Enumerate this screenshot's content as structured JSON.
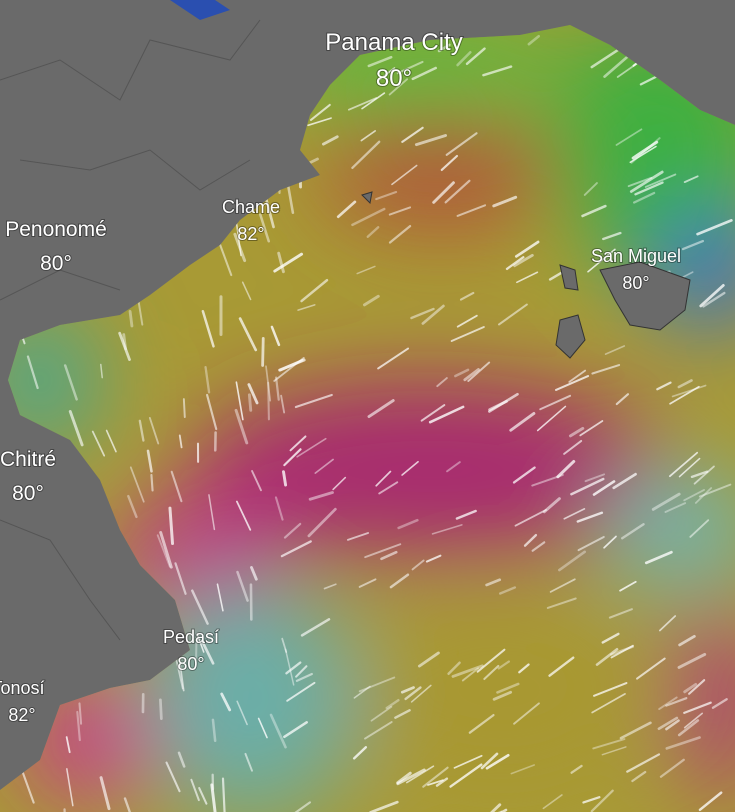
{
  "places": [
    {
      "name": "Panama City",
      "temp": "80°"
    },
    {
      "name": "Chame",
      "temp": "82°"
    },
    {
      "name": "Penonomé",
      "temp": "80°"
    },
    {
      "name": "San Miguel",
      "temp": "80°"
    },
    {
      "name": "Chitré",
      "temp": "80°"
    },
    {
      "name": "Pedasí",
      "temp": "80°"
    },
    {
      "name": "Tonosí",
      "temp": "82°"
    }
  ]
}
